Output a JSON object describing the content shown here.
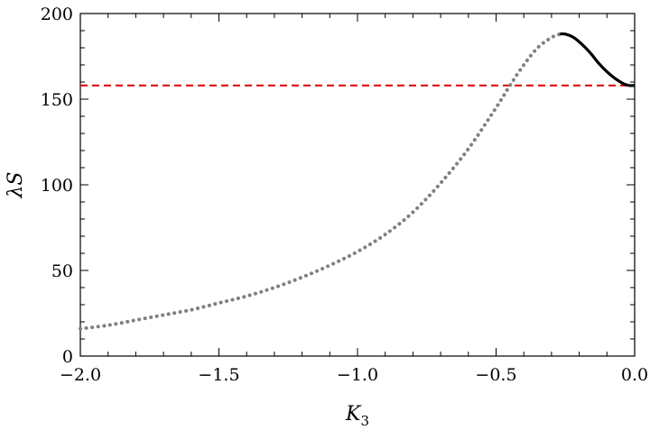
{
  "chart_data": {
    "type": "line",
    "title": "",
    "xlabel": "K",
    "xlabel_sub": "3",
    "ylabel": "λS",
    "xlim": [
      -2.0,
      0.0
    ],
    "ylim": [
      0,
      200
    ],
    "x_ticks": [
      -2.0,
      -1.5,
      -1.0,
      -0.5,
      0.0
    ],
    "x_tick_labels": [
      "−2.0",
      "−1.5",
      "−1.0",
      "−0.5",
      "0.0"
    ],
    "y_ticks": [
      0,
      50,
      100,
      150,
      200
    ],
    "y_tick_labels": [
      "0",
      "50",
      "100",
      "150",
      "200"
    ],
    "grid": false,
    "legend": "none",
    "reference_line": {
      "y": 158,
      "color": "#dd1111",
      "style": "dashed"
    },
    "series": [
      {
        "style": "dotted",
        "color": "#808080",
        "x": [
          -2.0,
          -1.9,
          -1.8,
          -1.7,
          -1.6,
          -1.5,
          -1.4,
          -1.3,
          -1.2,
          -1.1,
          -1.0,
          -0.9,
          -0.8,
          -0.7,
          -0.6,
          -0.5,
          -0.45,
          -0.4,
          -0.35,
          -0.3,
          -0.27
        ],
        "y": [
          16,
          18,
          21,
          24,
          27,
          31,
          35,
          40,
          46,
          53,
          61,
          71,
          84,
          101,
          121,
          145,
          158,
          170,
          180,
          186,
          188
        ]
      },
      {
        "style": "solid",
        "color": "#000000",
        "x": [
          -0.27,
          -0.25,
          -0.22,
          -0.19,
          -0.16,
          -0.13,
          -0.1,
          -0.07,
          -0.04,
          -0.02,
          0.0
        ],
        "y": [
          188,
          188,
          186,
          182,
          177,
          171,
          166,
          162,
          159,
          158,
          158
        ]
      }
    ]
  }
}
